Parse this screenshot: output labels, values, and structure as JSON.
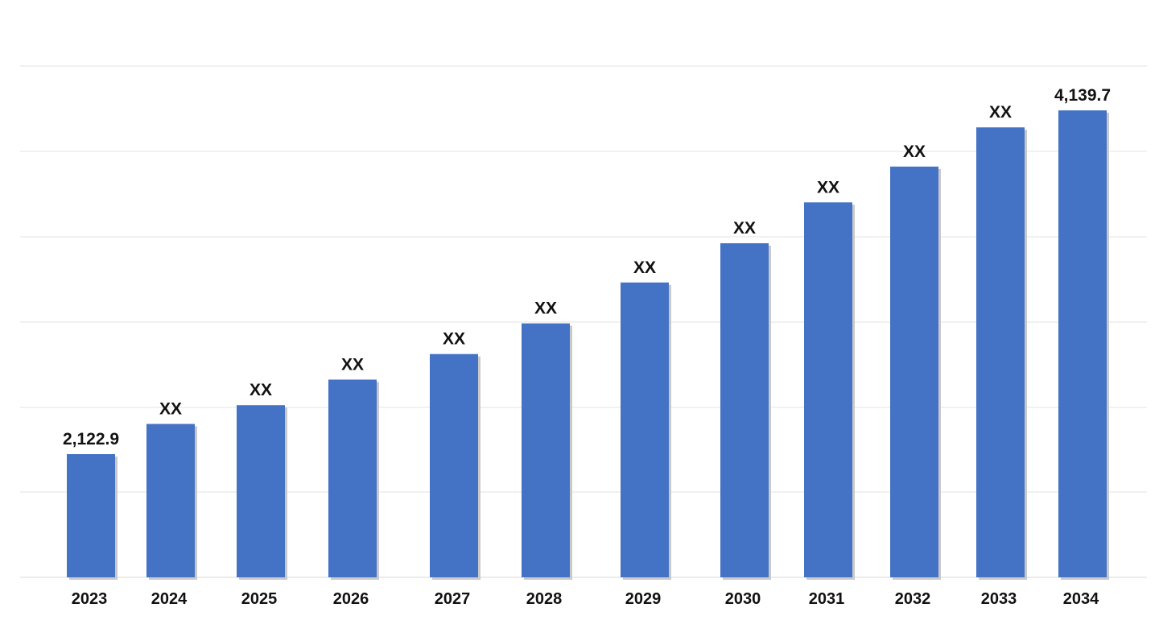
{
  "chart_data": {
    "type": "bar",
    "categories": [
      "2023",
      "2024",
      "2025",
      "2026",
      "2027",
      "2028",
      "2029",
      "2030",
      "2031",
      "2032",
      "2033",
      "2034"
    ],
    "values": [
      2122.9,
      2300,
      2410,
      2560,
      2710,
      2890,
      3130,
      3360,
      3600,
      3810,
      4040,
      4139.7
    ],
    "data_labels": [
      "2,122.9",
      "XX",
      "XX",
      "XX",
      "XX",
      "XX",
      "XX",
      "XX",
      "XX",
      "XX",
      "XX",
      "4,139.7"
    ],
    "title": "",
    "xlabel": "",
    "ylabel": "",
    "ylim": [
      1400,
      4400
    ],
    "grid": true,
    "legend": "none",
    "colors": {
      "bar": "#4472c4",
      "gridline": "#e3e3e3",
      "text": "#111111"
    }
  }
}
